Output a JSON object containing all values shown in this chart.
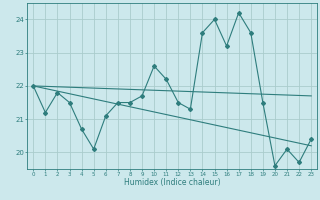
{
  "xlabel": "Humidex (Indice chaleur)",
  "ylabel": "",
  "bg_color": "#cce8ec",
  "grid_color": "#aacccc",
  "line_color": "#2e7d7d",
  "xlim": [
    -0.5,
    23.5
  ],
  "ylim": [
    19.5,
    24.5
  ],
  "yticks": [
    20,
    21,
    22,
    23,
    24
  ],
  "xticks": [
    0,
    1,
    2,
    3,
    4,
    5,
    6,
    7,
    8,
    9,
    10,
    11,
    12,
    13,
    14,
    15,
    16,
    17,
    18,
    19,
    20,
    21,
    22,
    23
  ],
  "series1_x": [
    0,
    1,
    2,
    3,
    4,
    5,
    6,
    7,
    8,
    9,
    10,
    11,
    12,
    13,
    14,
    15,
    16,
    17,
    18,
    19,
    20,
    21,
    22,
    23
  ],
  "series1_y": [
    22.0,
    21.2,
    21.8,
    21.5,
    20.7,
    20.1,
    21.1,
    21.5,
    21.5,
    21.7,
    22.6,
    22.2,
    21.5,
    21.3,
    23.6,
    24.0,
    23.2,
    24.2,
    23.6,
    21.5,
    19.6,
    20.1,
    19.7,
    20.4
  ],
  "trend1_x": [
    0,
    23
  ],
  "trend1_y": [
    22.0,
    21.7
  ],
  "trend2_x": [
    0,
    23
  ],
  "trend2_y": [
    22.0,
    20.2
  ]
}
